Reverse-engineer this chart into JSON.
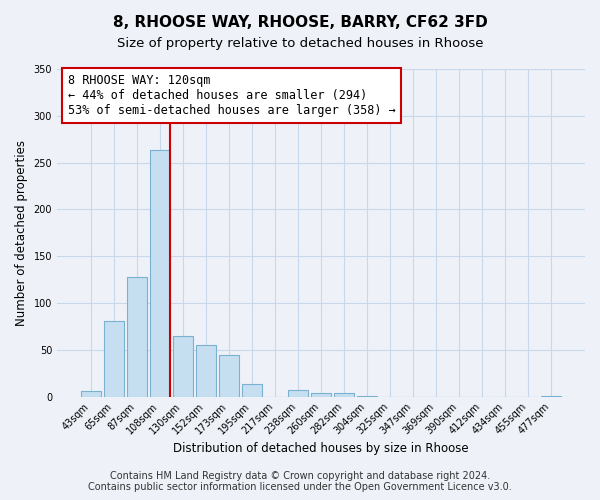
{
  "title": "8, RHOOSE WAY, RHOOSE, BARRY, CF62 3FD",
  "subtitle": "Size of property relative to detached houses in Rhoose",
  "xlabel": "Distribution of detached houses by size in Rhoose",
  "ylabel": "Number of detached properties",
  "bar_labels": [
    "43sqm",
    "65sqm",
    "87sqm",
    "108sqm",
    "130sqm",
    "152sqm",
    "173sqm",
    "195sqm",
    "217sqm",
    "238sqm",
    "260sqm",
    "282sqm",
    "304sqm",
    "325sqm",
    "347sqm",
    "369sqm",
    "390sqm",
    "412sqm",
    "434sqm",
    "455sqm",
    "477sqm"
  ],
  "bar_values": [
    6,
    81,
    128,
    263,
    65,
    55,
    44,
    14,
    0,
    7,
    4,
    4,
    1,
    0,
    0,
    0,
    0,
    0,
    0,
    0,
    1
  ],
  "bar_color": "#c6dff0",
  "bar_edge_color": "#7ab0d0",
  "vline_x_index": 3,
  "vline_color": "#cc0000",
  "annotation_line1": "8 RHOOSE WAY: 120sqm",
  "annotation_line2": "← 44% of detached houses are smaller (294)",
  "annotation_line3": "53% of semi-detached houses are larger (358) →",
  "annotation_box_color": "white",
  "annotation_box_edge_color": "#cc0000",
  "ylim": [
    0,
    350
  ],
  "yticks": [
    0,
    50,
    100,
    150,
    200,
    250,
    300,
    350
  ],
  "footer_line1": "Contains HM Land Registry data © Crown copyright and database right 2024.",
  "footer_line2": "Contains public sector information licensed under the Open Government Licence v3.0.",
  "bg_color": "#eef2f8",
  "plot_bg_color": "#eef2f8",
  "grid_color": "#c8d8ec",
  "title_fontsize": 11,
  "subtitle_fontsize": 9.5,
  "tick_fontsize": 7,
  "ylabel_fontsize": 8.5,
  "xlabel_fontsize": 8.5,
  "annotation_fontsize": 8.5,
  "footer_fontsize": 7
}
